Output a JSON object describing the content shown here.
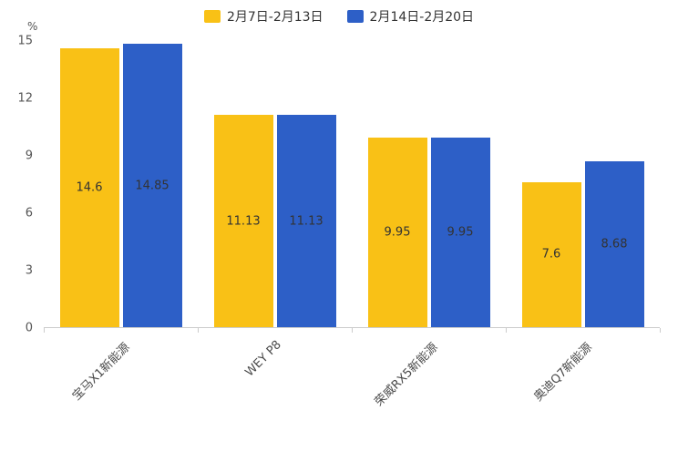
{
  "chart_data": {
    "type": "bar",
    "title": "",
    "unit": "%",
    "categories": [
      "宝马X1新能源",
      "WEY P8",
      "荣威RX5新能源",
      "奥迪Q7新能源"
    ],
    "series": [
      {
        "name": "2月7日-2月13日",
        "color": "#F9C116",
        "values": [
          14.6,
          11.13,
          9.95,
          7.6
        ]
      },
      {
        "name": "2月14日-2月20日",
        "color": "#2D5FC7",
        "values": [
          14.85,
          11.13,
          9.95,
          8.68
        ]
      }
    ],
    "value_labels": [
      [
        "14.6",
        "11.13",
        "9.95",
        "7.6"
      ],
      [
        "14.85",
        "11.13",
        "9.95",
        "8.68"
      ]
    ],
    "ylim": [
      0,
      15
    ],
    "yticks": [
      0,
      3,
      6,
      9,
      12,
      15
    ],
    "grid": false,
    "legend_position": "top",
    "value_label_color": "#333333",
    "axis_line_color": "#cccccc"
  }
}
